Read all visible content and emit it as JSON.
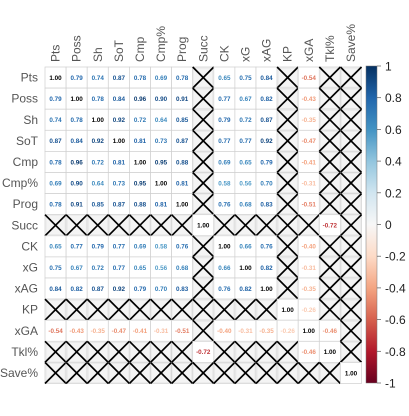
{
  "chart_data": {
    "type": "heatmap",
    "title": "",
    "labels": [
      "Pts",
      "Poss",
      "Sh",
      "SoT",
      "Cmp",
      "Cmp%",
      "Prog",
      "Succ",
      "CK",
      "xG",
      "xAG",
      "KP",
      "xGA",
      "Tkl%",
      "Save%"
    ],
    "matrix": [
      [
        1.0,
        0.79,
        0.74,
        0.87,
        0.78,
        0.69,
        0.78,
        null,
        0.65,
        0.75,
        0.84,
        null,
        -0.54,
        null,
        null
      ],
      [
        0.79,
        1.0,
        0.78,
        0.84,
        0.96,
        0.9,
        0.91,
        null,
        0.77,
        0.67,
        0.82,
        null,
        -0.43,
        null,
        null
      ],
      [
        0.74,
        0.78,
        1.0,
        0.92,
        0.72,
        0.64,
        0.85,
        null,
        0.79,
        0.72,
        0.87,
        null,
        -0.35,
        null,
        null
      ],
      [
        0.87,
        0.84,
        0.92,
        1.0,
        0.81,
        0.73,
        0.87,
        null,
        0.77,
        0.77,
        0.92,
        null,
        -0.47,
        null,
        null
      ],
      [
        0.78,
        0.96,
        0.72,
        0.81,
        1.0,
        0.95,
        0.88,
        null,
        0.69,
        0.65,
        0.79,
        null,
        -0.41,
        null,
        null
      ],
      [
        0.69,
        0.9,
        0.64,
        0.73,
        0.95,
        1.0,
        0.81,
        null,
        0.58,
        0.56,
        0.7,
        null,
        -0.31,
        null,
        null
      ],
      [
        0.78,
        0.91,
        0.85,
        0.87,
        0.88,
        0.81,
        1.0,
        null,
        0.76,
        0.68,
        0.83,
        null,
        -0.51,
        null,
        null
      ],
      [
        null,
        null,
        null,
        null,
        null,
        null,
        null,
        1.0,
        null,
        null,
        null,
        null,
        null,
        -0.72,
        null
      ],
      [
        0.65,
        0.77,
        0.79,
        0.77,
        0.69,
        0.58,
        0.76,
        null,
        1.0,
        0.66,
        0.76,
        null,
        -0.4,
        null,
        null
      ],
      [
        0.75,
        0.67,
        0.72,
        0.77,
        0.65,
        0.56,
        0.68,
        null,
        0.66,
        1.0,
        0.82,
        null,
        -0.31,
        null,
        null
      ],
      [
        0.84,
        0.82,
        0.87,
        0.92,
        0.79,
        0.7,
        0.83,
        null,
        0.76,
        0.82,
        1.0,
        null,
        -0.35,
        null,
        null
      ],
      [
        null,
        null,
        null,
        null,
        null,
        null,
        null,
        null,
        null,
        null,
        null,
        1.0,
        -0.26,
        null,
        null
      ],
      [
        -0.54,
        -0.43,
        -0.35,
        -0.47,
        -0.41,
        -0.31,
        -0.51,
        null,
        -0.4,
        -0.31,
        -0.35,
        -0.26,
        1.0,
        -0.46,
        null
      ],
      [
        null,
        null,
        null,
        null,
        null,
        null,
        null,
        -0.72,
        null,
        null,
        null,
        null,
        -0.46,
        1.0,
        null
      ],
      [
        null,
        null,
        null,
        null,
        null,
        null,
        null,
        null,
        null,
        null,
        null,
        null,
        null,
        null,
        1.0
      ]
    ],
    "color_scale": {
      "min": -1,
      "max": 1,
      "ticks": [
        "1",
        "0.8",
        "0.6",
        "0.4",
        "0.2",
        "0",
        "-0.2",
        "-0.4",
        "-0.6",
        "-0.8",
        "-1"
      ],
      "negative_color": "#67001f",
      "neutral_color": "#f7f7f7",
      "positive_color": "#053061"
    },
    "crossed_cells": "not significant",
    "legend_placement": "right"
  }
}
